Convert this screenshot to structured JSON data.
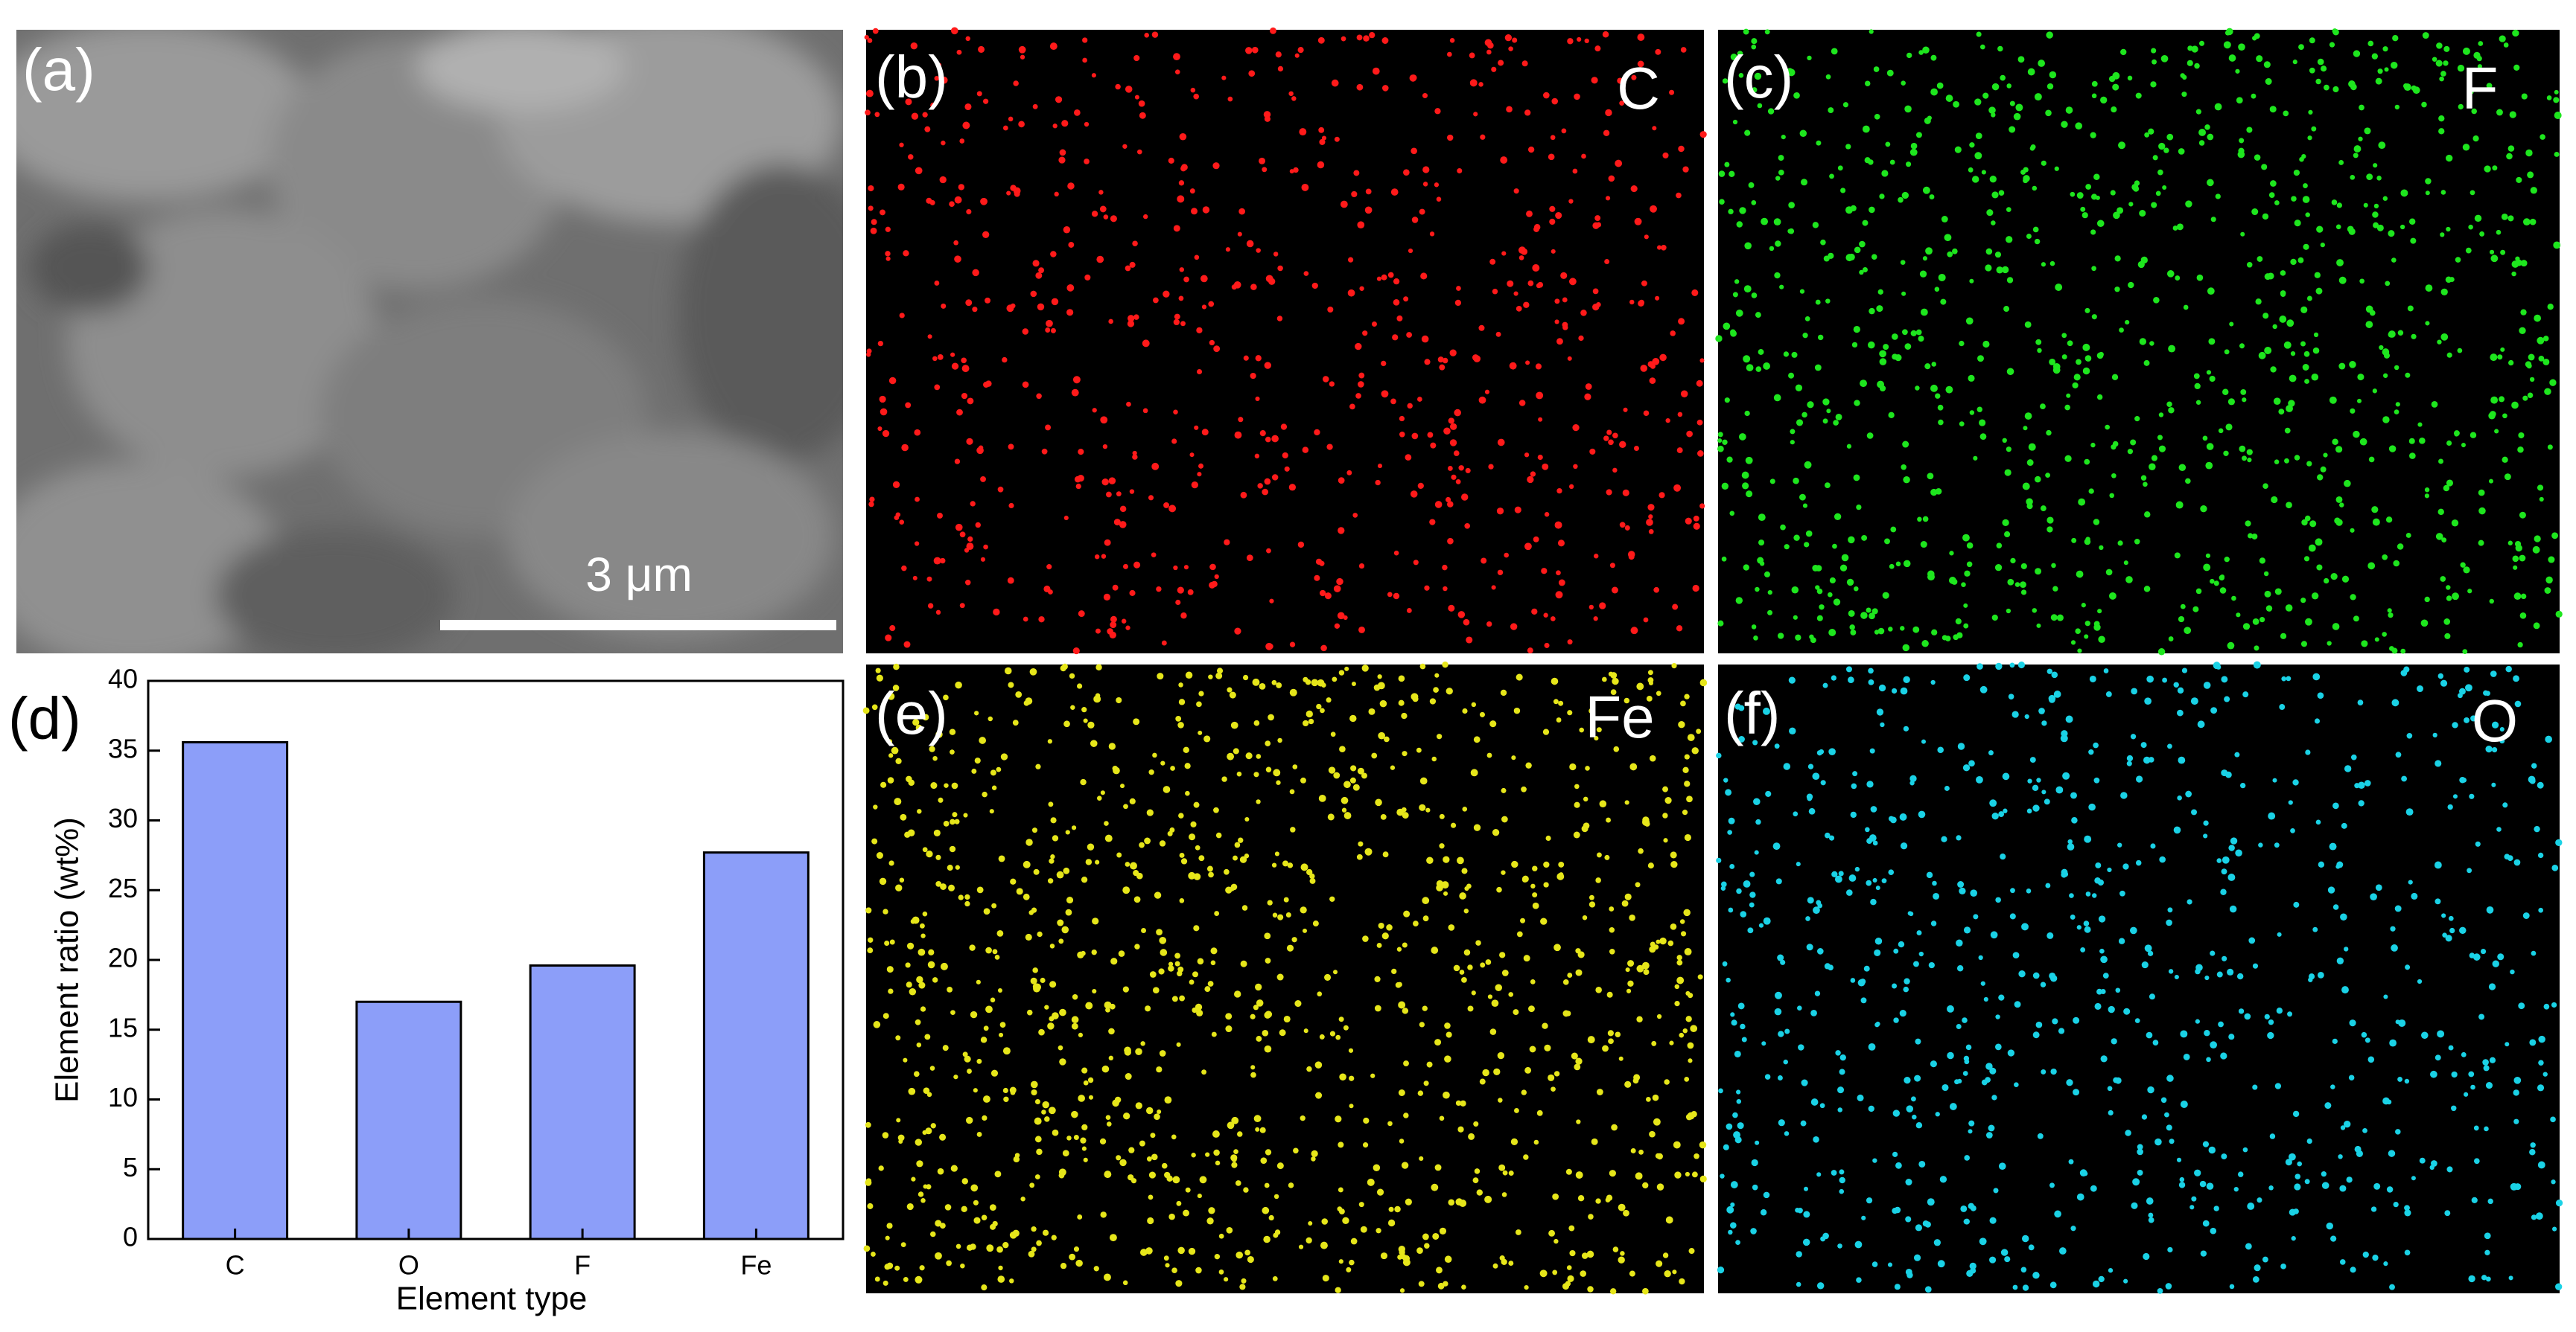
{
  "panels": [
    {
      "label": "(a)",
      "scale_bar": "3 μm"
    },
    {
      "label": "(b)",
      "element": "C"
    },
    {
      "label": "(c)",
      "element": "F"
    },
    {
      "label": "(e)",
      "element": "Fe"
    },
    {
      "label": "(f)",
      "element": "O"
    }
  ],
  "chart_data": {
    "type": "bar",
    "label": "(d)",
    "x_label": "Element type",
    "y_label": "Element ratio (wt%)",
    "categories": [
      "C",
      "O",
      "F",
      "Fe"
    ],
    "values": [
      35.6,
      17,
      19.6,
      27.7
    ],
    "color": "#8c9ef9",
    "ylim": [
      0,
      40
    ],
    "yticks": [
      0,
      5,
      10,
      15,
      20,
      25,
      30,
      35,
      40
    ]
  }
}
